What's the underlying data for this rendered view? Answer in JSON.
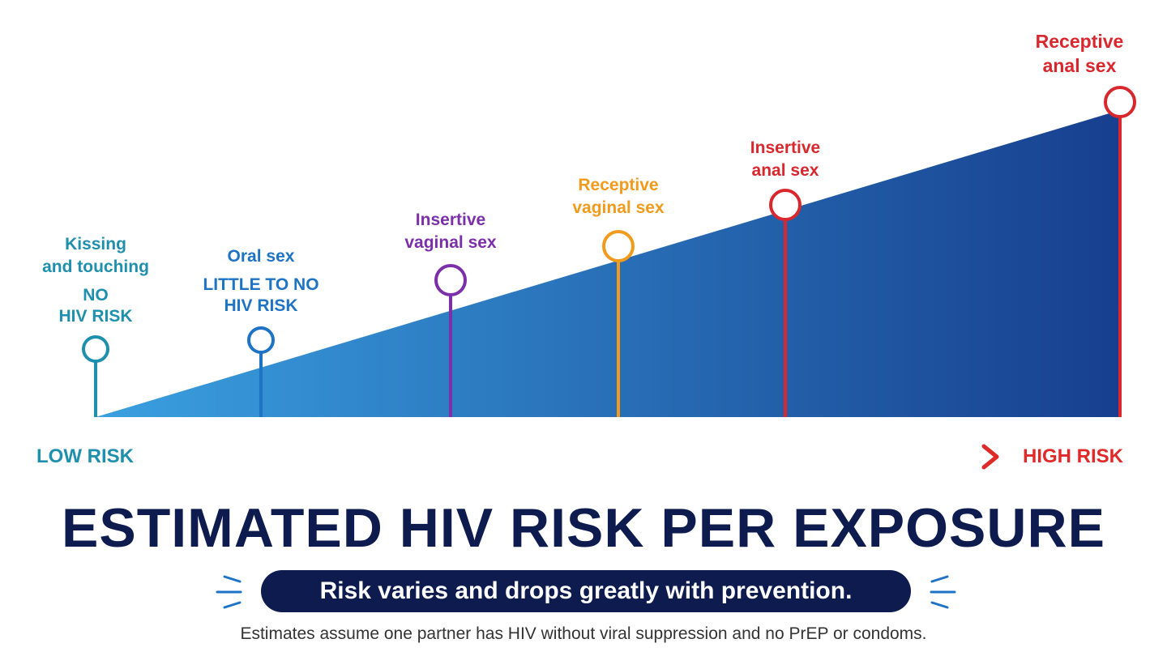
{
  "markers": [
    {
      "title": [
        "Kissing",
        "and touching"
      ],
      "note": [
        "NO",
        "HIV RISK"
      ],
      "color": "#1f8fae",
      "risk_level": 0
    },
    {
      "title": [
        "Oral sex"
      ],
      "note": [
        "LITTLE TO NO",
        "HIV RISK"
      ],
      "color": "#1e73c4",
      "risk_level": 1
    },
    {
      "title": [
        "Insertive",
        "vaginal sex"
      ],
      "note": [],
      "color": "#7b2fa8",
      "risk_level": 2
    },
    {
      "title": [
        "Receptive",
        "vaginal sex"
      ],
      "note": [],
      "color": "#f29a1c",
      "risk_level": 3
    },
    {
      "title": [
        "Insertive",
        "anal sex"
      ],
      "note": [],
      "color": "#d9272e",
      "risk_level": 4
    },
    {
      "title": [
        "Receptive",
        "anal sex"
      ],
      "note": [],
      "color": "#d9272e",
      "risk_level": 5
    }
  ],
  "scale": {
    "low_label": "LOW RISK",
    "high_label": "HIGH RISK",
    "low_color": "#1f8fae",
    "mid_color": "#7b2fa8",
    "high_color": "#e02a2a"
  },
  "colors": {
    "wedge_light": "#3aa0e0",
    "wedge_dark": "#173f8f",
    "navy": "#0d1b4f"
  },
  "title": "ESTIMATED HIV RISK PER EXPOSURE",
  "tagline": "Risk varies and drops greatly with prevention.",
  "footnote": "Estimates assume one partner has HIV without viral suppression and no PrEP or condoms."
}
